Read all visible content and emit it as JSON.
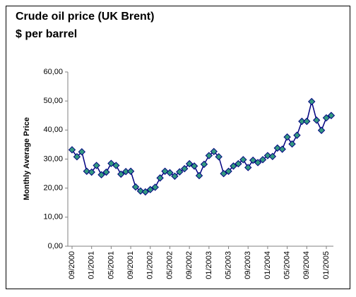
{
  "chart_data": {
    "type": "line",
    "title": "Crude oil price (UK Brent)",
    "subtitle": "$ per barrel",
    "y_label": "Monthly Average Price",
    "categories": [
      "09/2000",
      null,
      null,
      null,
      "01/2001",
      null,
      null,
      null,
      "05/2001",
      null,
      null,
      null,
      "09/2001",
      null,
      null,
      null,
      "01/2002",
      null,
      null,
      null,
      "05/2002",
      null,
      null,
      null,
      "09/2002",
      null,
      null,
      null,
      "01/2003",
      null,
      null,
      null,
      "05/2003",
      null,
      null,
      null,
      "09/2003",
      null,
      null,
      null,
      "01/2004",
      null,
      null,
      null,
      "05/2004",
      null,
      null,
      null,
      "09/2004",
      null,
      null,
      null,
      "01/2005",
      null
    ],
    "series": [
      {
        "name": "Brent",
        "color": "#000080",
        "marker_color": "#339980",
        "values": [
          33.2,
          30.8,
          32.5,
          25.8,
          25.5,
          27.8,
          24.6,
          25.5,
          28.5,
          27.8,
          24.8,
          25.7,
          25.8,
          20.4,
          19.0,
          18.7,
          19.5,
          20.3,
          23.5,
          25.8,
          25.3,
          24.1,
          25.6,
          26.7,
          28.4,
          27.6,
          24.3,
          28.2,
          31.2,
          32.6,
          30.8,
          25.0,
          25.8,
          27.6,
          28.4,
          29.8,
          27.1,
          29.6,
          28.8,
          29.8,
          31.2,
          30.9,
          33.8,
          33.4,
          37.6,
          35.2,
          38.2,
          43.0,
          43.0,
          49.8,
          43.4,
          39.9,
          44.2,
          45.0
        ]
      }
    ],
    "ylim": [
      0,
      60
    ],
    "yticks": [
      {
        "value": 0,
        "label": "0,00"
      },
      {
        "value": 10,
        "label": "10,00"
      },
      {
        "value": 20,
        "label": "20,00"
      },
      {
        "value": 30,
        "label": "30,00"
      },
      {
        "value": 40,
        "label": "40,00"
      },
      {
        "value": 50,
        "label": "50,00"
      },
      {
        "value": 60,
        "label": "60,00"
      }
    ],
    "grid": false
  }
}
